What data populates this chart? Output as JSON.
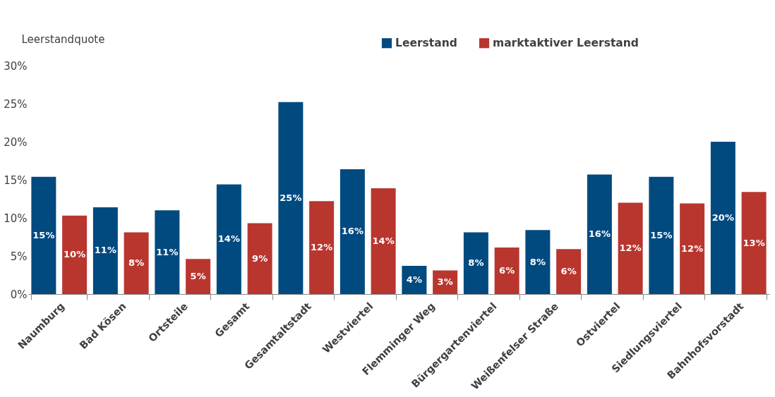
{
  "chart_data": {
    "type": "bar",
    "ylabel": "Leerstandquote",
    "categories": [
      "Naumburg",
      "Bad Kösen",
      "Ortsteile",
      "Gesamt",
      "Gesamtaltstadt",
      "Westviertel",
      "Flemminger Weg",
      "Bürgergartenviertel",
      "Weißenfelser Straße",
      "Ostviertel",
      "Siedlungsviertel",
      "Bahnhofsvorstadt"
    ],
    "series": [
      {
        "name": "Leerstand",
        "color": "#004a80",
        "values": [
          15.4,
          11.4,
          11.0,
          14.4,
          25.2,
          16.4,
          3.7,
          8.1,
          8.4,
          15.7,
          15.4,
          20.0
        ],
        "value_labels": [
          "15%",
          "11%",
          "11%",
          "14%",
          "25%",
          "16%",
          "4%",
          "8%",
          "8%",
          "16%",
          "15%",
          "20%"
        ]
      },
      {
        "name": "marktaktiver Leerstand",
        "color": "#b9362f",
        "values": [
          10.3,
          8.1,
          4.6,
          9.3,
          12.2,
          13.9,
          3.1,
          6.1,
          5.9,
          12.0,
          11.9,
          13.4
        ],
        "value_labels": [
          "10%",
          "8%",
          "5%",
          "9%",
          "12%",
          "14%",
          "3%",
          "6%",
          "6%",
          "12%",
          "12%",
          "13%"
        ]
      }
    ],
    "ylim": [
      0,
      30
    ],
    "yticks": [
      {
        "value": 0,
        "label": "0%"
      },
      {
        "value": 5,
        "label": "5%"
      },
      {
        "value": 10,
        "label": "10%"
      },
      {
        "value": 15,
        "label": "15%"
      },
      {
        "value": 20,
        "label": "20%"
      },
      {
        "value": 25,
        "label": "25%"
      },
      {
        "value": 30,
        "label": "30%"
      }
    ],
    "grid": false,
    "legend": "top right"
  }
}
